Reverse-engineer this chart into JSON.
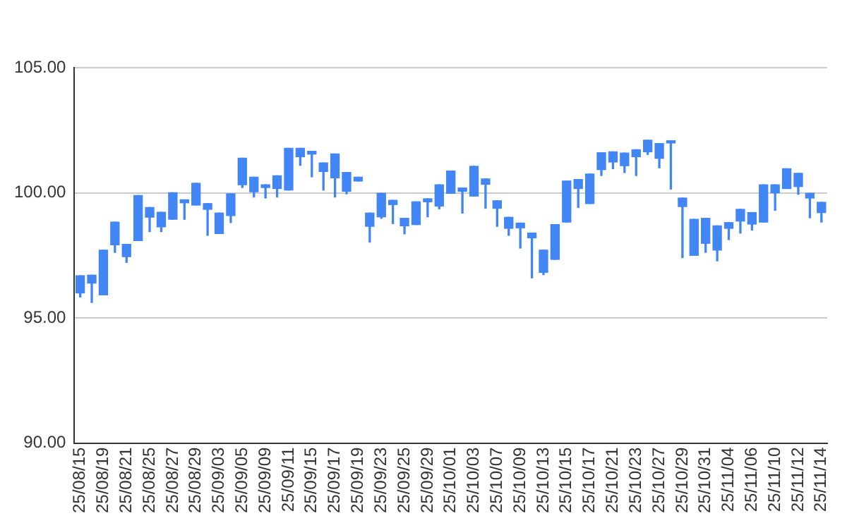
{
  "chart_data": {
    "type": "candlestick",
    "categories": [
      "25/08/15",
      null,
      "25/08/19",
      null,
      "25/08/21",
      null,
      "25/08/25",
      null,
      "25/08/27",
      null,
      "25/08/29",
      null,
      "25/09/03",
      null,
      "25/09/05",
      null,
      "25/09/09",
      null,
      "25/09/11",
      null,
      "25/09/15",
      null,
      "25/09/17",
      null,
      "25/09/19",
      null,
      "25/09/23",
      null,
      "25/09/25",
      null,
      "25/09/29",
      null,
      "25/10/01",
      null,
      "25/10/03",
      null,
      "25/10/07",
      null,
      "25/10/09",
      null,
      "25/10/13",
      null,
      "25/10/15",
      null,
      "25/10/17",
      null,
      "25/10/21",
      null,
      "25/10/23",
      null,
      "25/10/27",
      null,
      "25/10/29",
      null,
      "25/10/31",
      null,
      "25/11/04",
      null,
      "25/11/06",
      null,
      "25/11/10",
      null,
      "25/11/12",
      null,
      "25/11/14"
    ],
    "ohlc": [
      [
        96.69,
        96.69,
        95.84,
        96.0
      ],
      [
        96.71,
        96.71,
        95.62,
        96.39
      ],
      [
        97.71,
        97.71,
        95.92,
        95.92
      ],
      [
        98.83,
        98.83,
        97.62,
        97.92
      ],
      [
        97.94,
        97.94,
        97.22,
        97.45
      ],
      [
        99.89,
        99.89,
        98.09,
        98.09
      ],
      [
        99.41,
        99.41,
        98.45,
        99.03
      ],
      [
        99.22,
        99.22,
        98.45,
        98.64
      ],
      [
        100.0,
        100.0,
        98.94,
        98.94
      ],
      [
        99.72,
        99.72,
        98.94,
        99.6
      ],
      [
        100.38,
        100.38,
        99.51,
        99.51
      ],
      [
        99.57,
        99.57,
        98.3,
        99.34
      ],
      [
        99.19,
        99.19,
        98.37,
        98.37
      ],
      [
        99.96,
        99.96,
        98.81,
        99.09
      ],
      [
        101.38,
        101.38,
        100.21,
        100.32
      ],
      [
        100.62,
        100.62,
        99.83,
        100.04
      ],
      [
        100.32,
        100.32,
        99.79,
        100.21
      ],
      [
        100.68,
        100.68,
        99.83,
        100.17
      ],
      [
        101.78,
        101.78,
        100.11,
        100.11
      ],
      [
        101.78,
        101.78,
        101.1,
        101.44
      ],
      [
        101.66,
        101.66,
        100.64,
        101.55
      ],
      [
        101.19,
        101.19,
        100.11,
        100.85
      ],
      [
        101.55,
        101.55,
        99.83,
        100.6
      ],
      [
        100.81,
        100.81,
        99.96,
        100.06
      ],
      [
        100.62,
        100.62,
        100.47,
        100.47
      ],
      [
        99.19,
        99.19,
        98.03,
        98.66
      ],
      [
        99.98,
        99.98,
        98.98,
        99.04
      ],
      [
        99.7,
        99.7,
        98.77,
        99.53
      ],
      [
        98.98,
        98.98,
        98.36,
        98.68
      ],
      [
        99.64,
        99.64,
        98.73,
        98.73
      ],
      [
        99.76,
        99.76,
        99.04,
        99.64
      ],
      [
        100.32,
        100.32,
        99.36,
        99.47
      ],
      [
        100.87,
        100.87,
        99.98,
        99.98
      ],
      [
        100.19,
        100.19,
        99.19,
        100.06
      ],
      [
        101.06,
        101.06,
        99.87,
        99.87
      ],
      [
        100.55,
        100.55,
        99.38,
        100.34
      ],
      [
        99.68,
        99.68,
        98.66,
        99.38
      ],
      [
        99.02,
        99.02,
        98.3,
        98.58
      ],
      [
        98.79,
        98.79,
        97.79,
        98.6
      ],
      [
        98.39,
        98.39,
        96.6,
        98.2
      ],
      [
        97.71,
        97.71,
        96.73,
        96.82
      ],
      [
        98.73,
        98.73,
        97.34,
        97.34
      ],
      [
        100.47,
        100.47,
        98.83,
        98.83
      ],
      [
        100.53,
        100.53,
        99.41,
        100.17
      ],
      [
        100.75,
        100.75,
        99.57,
        99.57
      ],
      [
        101.6,
        101.6,
        100.69,
        100.93
      ],
      [
        101.64,
        101.64,
        100.96,
        101.23
      ],
      [
        101.59,
        101.59,
        100.81,
        101.08
      ],
      [
        101.72,
        101.72,
        100.69,
        101.44
      ],
      [
        102.1,
        102.1,
        101.53,
        101.64
      ],
      [
        101.97,
        101.97,
        101.0,
        101.38
      ],
      [
        102.08,
        102.08,
        100.15,
        101.99
      ],
      [
        99.79,
        99.79,
        97.41,
        99.45
      ],
      [
        98.94,
        98.94,
        97.5,
        97.5
      ],
      [
        98.98,
        98.98,
        97.62,
        97.98
      ],
      [
        98.68,
        98.68,
        97.28,
        97.71
      ],
      [
        98.81,
        98.81,
        98.13,
        98.58
      ],
      [
        99.34,
        99.34,
        98.39,
        98.87
      ],
      [
        99.21,
        99.21,
        98.51,
        98.75
      ],
      [
        100.32,
        100.32,
        98.83,
        98.83
      ],
      [
        100.32,
        100.32,
        99.3,
        100.0
      ],
      [
        100.96,
        100.96,
        100.17,
        100.17
      ],
      [
        100.78,
        100.78,
        99.94,
        100.25
      ],
      [
        99.98,
        99.98,
        99.0,
        99.79
      ],
      [
        99.62,
        99.62,
        98.83,
        99.21
      ]
    ],
    "color": "#4285f4",
    "ylim": [
      90,
      105
    ],
    "yticks": [
      {
        "value": 90,
        "label": "90.00"
      },
      {
        "value": 95,
        "label": "95.00"
      },
      {
        "value": 100,
        "label": "100.00"
      },
      {
        "value": 105,
        "label": "105.00"
      }
    ],
    "grid": "y"
  }
}
